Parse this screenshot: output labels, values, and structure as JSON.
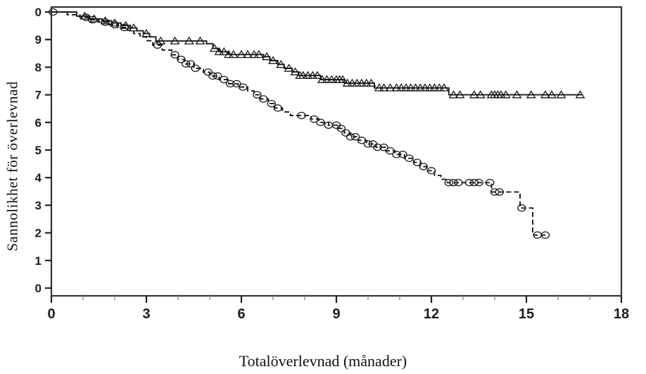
{
  "figure": {
    "background_color": "#ffffff"
  },
  "chart_data": {
    "type": "line",
    "subtype": "kaplan-meier-step-curves",
    "title": "",
    "xlabel": "Totalöverlevnad (månader)",
    "ylabel": "Sannolikhet för överlevnad",
    "xlim": [
      0,
      18
    ],
    "ylim": [
      0.0,
      1.0
    ],
    "grid": false,
    "legend": "none",
    "frame_color": "#333333",
    "axis_color": "#222222",
    "minor_tick_color": "#8f8f8f",
    "x_major_ticks": [
      0,
      3,
      6,
      9,
      12,
      15,
      18
    ],
    "x_minor_tick_step": 1,
    "y_ticks": [
      {
        "value": 1.0,
        "label": "0"
      },
      {
        "value": 0.9,
        "label": "9"
      },
      {
        "value": 0.8,
        "label": "8"
      },
      {
        "value": 0.7,
        "label": "7"
      },
      {
        "value": 0.6,
        "label": "6"
      },
      {
        "value": 0.5,
        "label": "5"
      },
      {
        "value": 0.4,
        "label": "4"
      },
      {
        "value": 0.3,
        "label": "3"
      },
      {
        "value": 0.2,
        "label": "2"
      },
      {
        "value": 0.1,
        "label": "1"
      },
      {
        "value": 0.0,
        "label": "0"
      }
    ],
    "series": [
      {
        "name": "curve-triangles",
        "line_style": "solid",
        "marker": "triangle-open",
        "color": "#1a1a1a",
        "steps": [
          [
            0,
            1.0
          ],
          [
            0.8,
            0.985
          ],
          [
            1.2,
            0.975
          ],
          [
            1.6,
            0.968
          ],
          [
            1.9,
            0.96
          ],
          [
            2.2,
            0.951
          ],
          [
            2.5,
            0.942
          ],
          [
            2.7,
            0.932
          ],
          [
            2.9,
            0.922
          ],
          [
            3.1,
            0.91
          ],
          [
            3.3,
            0.895
          ],
          [
            4.9,
            0.885
          ],
          [
            5.1,
            0.868
          ],
          [
            5.3,
            0.856
          ],
          [
            5.6,
            0.846
          ],
          [
            6.7,
            0.838
          ],
          [
            6.9,
            0.824
          ],
          [
            7.15,
            0.81
          ],
          [
            7.35,
            0.796
          ],
          [
            7.6,
            0.783
          ],
          [
            7.8,
            0.77
          ],
          [
            8.5,
            0.755
          ],
          [
            9.25,
            0.742
          ],
          [
            10.2,
            0.725
          ],
          [
            12.55,
            0.7
          ],
          [
            16.75,
            0.7
          ]
        ],
        "censor_marks": [
          1.05,
          1.35,
          1.7,
          2.0,
          2.35,
          2.6,
          3.0,
          3.45,
          3.9,
          4.35,
          4.7,
          5.15,
          5.3,
          5.45,
          5.6,
          5.75,
          6.0,
          6.2,
          6.4,
          6.55,
          6.8,
          7.0,
          7.25,
          7.5,
          7.7,
          7.85,
          7.95,
          8.1,
          8.25,
          8.4,
          8.55,
          8.7,
          8.85,
          9.0,
          9.1,
          9.2,
          9.35,
          9.5,
          9.65,
          9.8,
          9.95,
          10.1,
          10.35,
          10.5,
          10.7,
          10.9,
          11.05,
          11.2,
          11.35,
          11.5,
          11.65,
          11.8,
          11.95,
          12.1,
          12.25,
          12.4,
          12.7,
          12.9,
          13.35,
          13.55,
          13.9,
          14.0,
          14.1,
          14.2,
          14.35,
          14.7,
          15.15,
          15.6,
          15.8,
          16.1,
          16.7
        ]
      },
      {
        "name": "curve-circles",
        "line_style": "dashed",
        "marker": "circle-open",
        "color": "#1a1a1a",
        "steps": [
          [
            0,
            1.0
          ],
          [
            0.5,
            0.99
          ],
          [
            0.9,
            0.98
          ],
          [
            1.2,
            0.972
          ],
          [
            1.5,
            0.963
          ],
          [
            1.8,
            0.954
          ],
          [
            2.1,
            0.944
          ],
          [
            2.4,
            0.934
          ],
          [
            2.6,
            0.922
          ],
          [
            2.8,
            0.91
          ],
          [
            3.0,
            0.896
          ],
          [
            3.2,
            0.88
          ],
          [
            3.5,
            0.862
          ],
          [
            3.8,
            0.845
          ],
          [
            4.0,
            0.828
          ],
          [
            4.2,
            0.812
          ],
          [
            4.5,
            0.796
          ],
          [
            4.8,
            0.782
          ],
          [
            5.0,
            0.768
          ],
          [
            5.3,
            0.755
          ],
          [
            5.6,
            0.74
          ],
          [
            5.9,
            0.728
          ],
          [
            6.2,
            0.714
          ],
          [
            6.4,
            0.7
          ],
          [
            6.6,
            0.685
          ],
          [
            6.85,
            0.668
          ],
          [
            7.05,
            0.652
          ],
          [
            7.3,
            0.638
          ],
          [
            7.55,
            0.625
          ],
          [
            8.2,
            0.612
          ],
          [
            8.45,
            0.6
          ],
          [
            8.75,
            0.59
          ],
          [
            9.05,
            0.578
          ],
          [
            9.25,
            0.562
          ],
          [
            9.45,
            0.548
          ],
          [
            9.7,
            0.535
          ],
          [
            9.95,
            0.522
          ],
          [
            10.25,
            0.51
          ],
          [
            10.55,
            0.497
          ],
          [
            10.85,
            0.484
          ],
          [
            11.15,
            0.47
          ],
          [
            11.45,
            0.455
          ],
          [
            11.65,
            0.44
          ],
          [
            11.85,
            0.425
          ],
          [
            12.1,
            0.408
          ],
          [
            12.3,
            0.394
          ],
          [
            12.5,
            0.382
          ],
          [
            13.9,
            0.348
          ],
          [
            14.8,
            0.29
          ],
          [
            15.2,
            0.192
          ],
          [
            15.7,
            0.192
          ]
        ],
        "censor_marks": [
          0.05,
          1.1,
          1.3,
          1.7,
          2.0,
          2.3,
          3.35,
          3.9,
          4.1,
          4.25,
          4.4,
          4.55,
          4.95,
          5.1,
          5.25,
          5.45,
          5.65,
          5.85,
          6.05,
          6.5,
          6.7,
          6.95,
          7.15,
          7.9,
          8.3,
          8.5,
          8.75,
          9.0,
          9.15,
          9.3,
          9.45,
          9.6,
          9.8,
          10.0,
          10.15,
          10.3,
          10.5,
          10.7,
          10.9,
          11.1,
          11.3,
          11.55,
          11.75,
          12.0,
          12.55,
          12.7,
          12.85,
          13.2,
          13.35,
          13.5,
          13.85,
          14.0,
          14.15,
          14.85,
          15.35,
          15.6
        ]
      }
    ]
  }
}
